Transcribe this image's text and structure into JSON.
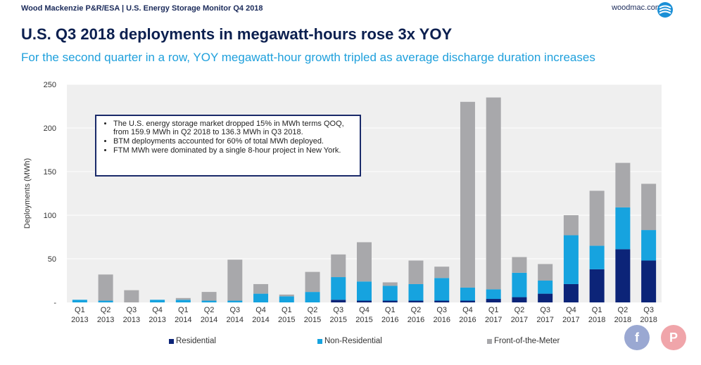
{
  "header": {
    "source": "Wood Mackenzie P&R/ESA | U.S. Energy Storage Monitor Q4 2018",
    "site": "woodmac.com"
  },
  "title": "U.S. Q3 2018 deployments in megawatt-hours rose 3x YOY",
  "subtitle": "For the second quarter in a row, YOY megawatt-hour growth tripled as average discharge duration increases",
  "callout": {
    "bullets": [
      "The U.S. energy storage market dropped 15% in MWh terms QOQ, from 159.9 MWh in Q2 2018 to 136.3 MWh in Q3 2018.",
      "BTM deployments accounted for 60% of total MWh deployed.",
      "FTM MWh were dominated by a single 8-hour project in New York."
    ]
  },
  "social": {
    "facebook": "f",
    "pinterest": "P"
  },
  "colors": {
    "residential": "#0c2478",
    "non_residential": "#16a3df",
    "ftm": "#a8a8ab",
    "plot_bg": "#efefef"
  },
  "chart_data": {
    "type": "bar",
    "stacked": true,
    "ylabel": "Deployments (MWh)",
    "xlabel": "",
    "ylim": [
      0,
      250
    ],
    "yticks": [
      "-",
      "50",
      "100",
      "150",
      "200",
      "250"
    ],
    "categories": [
      [
        "Q1",
        "2013"
      ],
      [
        "Q2",
        "2013"
      ],
      [
        "Q3",
        "2013"
      ],
      [
        "Q4",
        "2013"
      ],
      [
        "Q1",
        "2014"
      ],
      [
        "Q2",
        "2014"
      ],
      [
        "Q3",
        "2014"
      ],
      [
        "Q4",
        "2014"
      ],
      [
        "Q1",
        "2015"
      ],
      [
        "Q2",
        "2015"
      ],
      [
        "Q3",
        "2015"
      ],
      [
        "Q4",
        "2015"
      ],
      [
        "Q1",
        "2016"
      ],
      [
        "Q2",
        "2016"
      ],
      [
        "Q3",
        "2016"
      ],
      [
        "Q4",
        "2016"
      ],
      [
        "Q1",
        "2017"
      ],
      [
        "Q2",
        "2017"
      ],
      [
        "Q3",
        "2017"
      ],
      [
        "Q4",
        "2017"
      ],
      [
        "Q1",
        "2018"
      ],
      [
        "Q2",
        "2018"
      ],
      [
        "Q3",
        "2018"
      ]
    ],
    "series": [
      {
        "name": "Residential",
        "values": [
          0,
          0,
          0,
          0,
          0,
          0,
          0,
          0,
          0,
          0,
          3,
          2,
          2,
          2,
          2,
          2,
          4,
          6,
          10,
          21,
          38,
          61,
          48
        ]
      },
      {
        "name": "Non-Residential",
        "values": [
          3,
          2,
          0,
          3,
          3,
          2,
          2,
          10,
          7,
          12,
          26,
          22,
          17,
          19,
          26,
          15,
          11,
          28,
          15,
          56,
          27,
          48,
          35
        ]
      },
      {
        "name": "Front-of-the-Meter",
        "values": [
          0,
          30,
          14,
          0,
          2,
          10,
          47,
          11,
          2,
          23,
          26,
          45,
          4,
          27,
          13,
          213,
          220,
          18,
          19,
          23,
          63,
          51,
          53
        ]
      }
    ],
    "legend": [
      "Residential",
      "Non-Residential",
      "Front-of-the-Meter"
    ]
  }
}
